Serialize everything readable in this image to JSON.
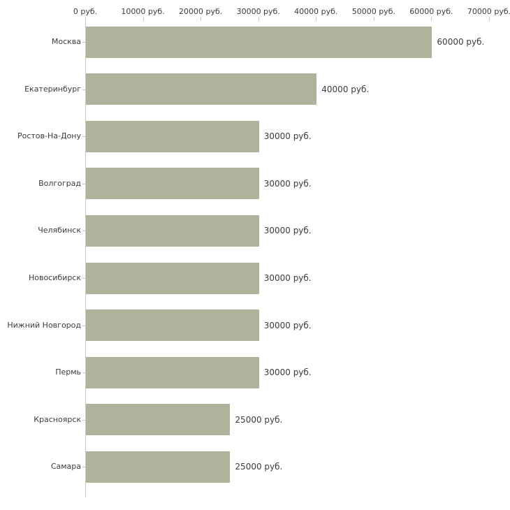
{
  "chart_data": {
    "type": "bar",
    "orientation": "horizontal",
    "title": "",
    "xlabel": "",
    "ylabel": "",
    "xlim": [
      0,
      70000
    ],
    "grid": false,
    "legend": null,
    "categories": [
      "Москва",
      "Екатеринбург",
      "Ростов-На-Дону",
      "Волгоград",
      "Челябинск",
      "Новосибирск",
      "Нижний Новгород",
      "Пермь",
      "Красноярск",
      "Самара"
    ],
    "values": [
      60000,
      40000,
      30000,
      30000,
      30000,
      30000,
      30000,
      30000,
      25000,
      25000
    ],
    "value_labels": [
      "60000 руб.",
      "40000 руб.",
      "30000 руб.",
      "30000 руб.",
      "30000 руб.",
      "30000 руб.",
      "30000 руб.",
      "30000 руб.",
      "25000 руб.",
      "25000 руб."
    ],
    "x_ticks": [
      {
        "value": 0,
        "label": "0 руб."
      },
      {
        "value": 10000,
        "label": "10000 руб."
      },
      {
        "value": 20000,
        "label": "20000 руб."
      },
      {
        "value": 30000,
        "label": "30000 руб."
      },
      {
        "value": 40000,
        "label": "40000 руб."
      },
      {
        "value": 50000,
        "label": "50000 руб."
      },
      {
        "value": 60000,
        "label": "60000 руб."
      },
      {
        "value": 70000,
        "label": "70000 руб."
      }
    ],
    "bar_color": "#adb49b",
    "axis_color": "#c9c9c9",
    "text_color": "#3b3b3b",
    "background_color": "#ffffff"
  }
}
